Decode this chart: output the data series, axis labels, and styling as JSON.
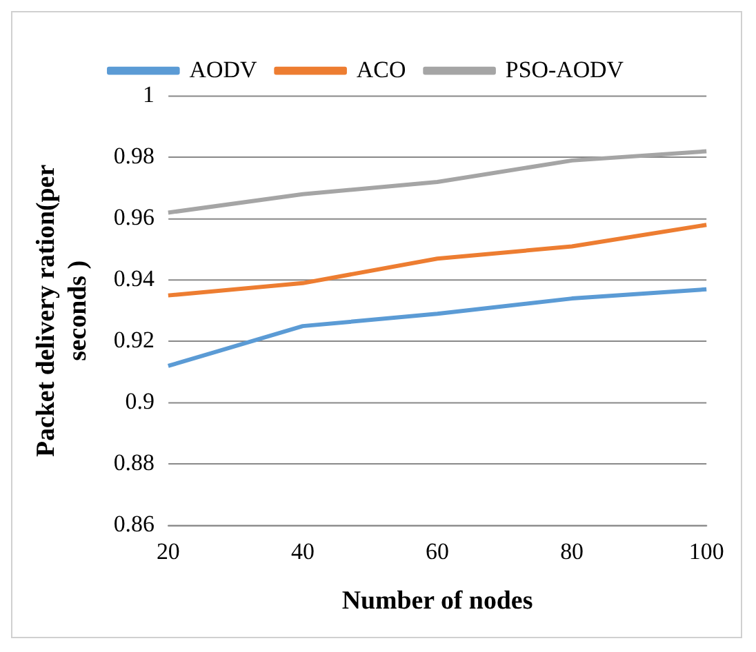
{
  "chart_data": {
    "type": "line",
    "xlabel": "Number of nodes",
    "ylabel": "Packet delivery ration(per seconds )",
    "categories": [
      "20",
      "40",
      "60",
      "80",
      "100"
    ],
    "series": [
      {
        "name": "AODV",
        "color": "#5b9bd5",
        "values": [
          0.912,
          0.925,
          0.929,
          0.934,
          0.937
        ]
      },
      {
        "name": "ACO",
        "color": "#ed7d31",
        "values": [
          0.935,
          0.939,
          0.947,
          0.951,
          0.958
        ]
      },
      {
        "name": "PSO-AODV",
        "color": "#a5a5a5",
        "values": [
          0.962,
          0.968,
          0.972,
          0.979,
          0.982
        ]
      }
    ],
    "ylim": [
      0.86,
      1
    ],
    "yticks": [
      0.86,
      0.88,
      0.9,
      0.92,
      0.94,
      0.96,
      0.98,
      1
    ],
    "grid": "y",
    "legend": "top",
    "marker": "none",
    "line_style": "solid"
  }
}
